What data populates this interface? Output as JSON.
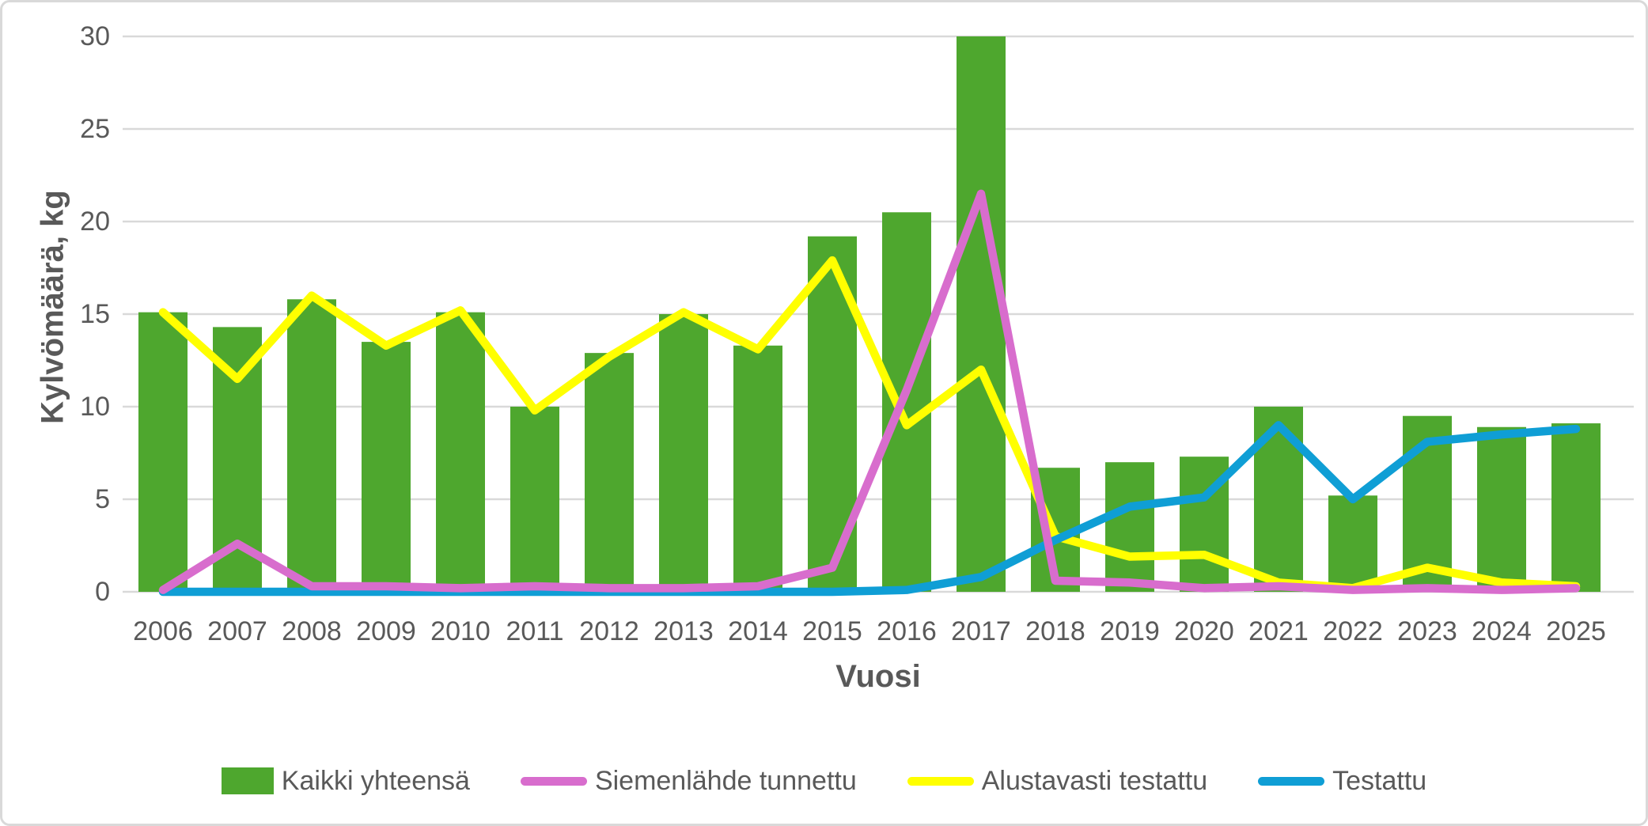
{
  "chart_data": {
    "type": "combo-bar-line",
    "title": "",
    "xlabel": "Vuosi",
    "ylabel": "Kylvömäärä, kg",
    "ylim": [
      0,
      30
    ],
    "ytick_step": 5,
    "yticks": [
      "0",
      "5",
      "10",
      "15",
      "20",
      "25",
      "30"
    ],
    "grid": true,
    "legend_position": "bottom",
    "categories": [
      "2006",
      "2007",
      "2008",
      "2009",
      "2010",
      "2011",
      "2012",
      "2013",
      "2014",
      "2015",
      "2016",
      "2017",
      "2018",
      "2019",
      "2020",
      "2021",
      "2022",
      "2023",
      "2024",
      "2025"
    ],
    "series": [
      {
        "name": "Kaikki yhteensä",
        "type": "bar",
        "color": "#4EA72E",
        "values": [
          15.1,
          14.3,
          15.8,
          13.5,
          15.1,
          10.0,
          12.9,
          15.0,
          13.3,
          19.2,
          20.5,
          30.0,
          6.7,
          7.0,
          7.3,
          10.0,
          5.2,
          9.5,
          8.9,
          9.1
        ]
      },
      {
        "name": "Siemenlähde tunnettu",
        "type": "line",
        "color": "#D86DCD",
        "values": [
          0.1,
          2.6,
          0.3,
          0.3,
          0.2,
          0.3,
          0.2,
          0.2,
          0.3,
          1.3,
          10.9,
          21.5,
          0.6,
          0.5,
          0.2,
          0.3,
          0.1,
          0.2,
          0.1,
          0.2
        ]
      },
      {
        "name": "Alustavasti testattu",
        "type": "line",
        "color": "#FFFF00",
        "values": [
          15.1,
          11.5,
          16.0,
          13.3,
          15.2,
          9.8,
          12.7,
          15.1,
          13.1,
          17.9,
          9.0,
          12.0,
          3.0,
          1.9,
          2.0,
          0.5,
          0.2,
          1.3,
          0.5,
          0.3
        ]
      },
      {
        "name": "Testattu",
        "type": "line",
        "color": "#0F9ED5",
        "values": [
          0.0,
          0.0,
          0.0,
          0.0,
          0.0,
          0.0,
          0.0,
          0.0,
          0.0,
          0.0,
          0.1,
          0.8,
          2.8,
          4.6,
          5.1,
          9.0,
          5.0,
          8.1,
          8.5,
          8.8
        ]
      }
    ],
    "draw_order": [
      "Kaikki yhteensä",
      "Alustavasti testattu",
      "Testattu",
      "Siemenlähde tunnettu"
    ],
    "style": {
      "gridline_color": "#D9D9D9",
      "axis_text_color": "#595959",
      "background": "#FFFFFF",
      "border_color": "#D9D9D9"
    }
  }
}
